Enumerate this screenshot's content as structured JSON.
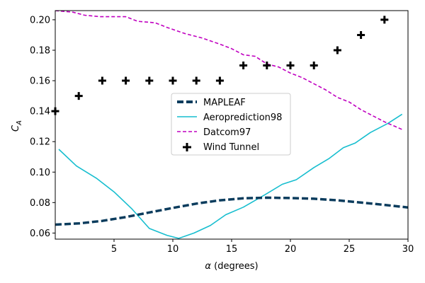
{
  "chart_data": {
    "type": "line",
    "title": "",
    "xlabel_symbol": "α",
    "xlabel_text": " (degrees)",
    "ylabel_symbol": "C",
    "ylabel_sub": "A",
    "xlim": [
      0,
      30
    ],
    "ylim": [
      0.056,
      0.206
    ],
    "xticks": [
      5,
      10,
      15,
      20,
      25,
      30
    ],
    "yticks": [
      0.06,
      0.08,
      0.1,
      0.12,
      0.14,
      0.16,
      0.18,
      0.2
    ],
    "ytick_labels": [
      "0.06",
      "0.08",
      "0.10",
      "0.12",
      "0.14",
      "0.16",
      "0.18",
      "0.20"
    ],
    "legend_position": "center",
    "colors": {
      "mapleaf": "#0b3c5d",
      "aeroprediction": "#17becf",
      "datcom": "#c000c0",
      "windtunnel": "#000000"
    },
    "series": [
      {
        "name": "MAPLEAF",
        "style": "thick-dashed",
        "x": [
          0,
          2,
          4,
          6,
          8,
          10,
          12,
          14,
          16,
          18,
          20,
          22,
          24,
          26,
          28,
          30
        ],
        "y": [
          0.0655,
          0.0663,
          0.068,
          0.0705,
          0.0735,
          0.0765,
          0.0793,
          0.0815,
          0.0828,
          0.0832,
          0.083,
          0.0825,
          0.0815,
          0.08,
          0.0785,
          0.0768
        ]
      },
      {
        "name": "Aeroprediction98",
        "style": "solid",
        "x": [
          0.3,
          1.8,
          3.5,
          5.0,
          6.5,
          8.0,
          9.5,
          10.5,
          11.8,
          13.2,
          14.5,
          16.0,
          17.8,
          19.3,
          20.5,
          22.0,
          23.3,
          24.5,
          25.5,
          26.8,
          28.3,
          29.5
        ],
        "y": [
          0.115,
          0.104,
          0.096,
          0.087,
          0.076,
          0.063,
          0.0585,
          0.0565,
          0.06,
          0.065,
          0.072,
          0.077,
          0.085,
          0.092,
          0.095,
          0.103,
          0.109,
          0.116,
          0.119,
          0.126,
          0.132,
          0.138
        ]
      },
      {
        "name": "Datcom97",
        "style": "dashed",
        "x": [
          0,
          1.5,
          2.5,
          3.8,
          5.0,
          6.0,
          7.0,
          8.5,
          9.5,
          11.0,
          12.5,
          14.0,
          15.0,
          16.0,
          17.0,
          18.0,
          19.0,
          20.0,
          21.0,
          22.0,
          23.0,
          24.0,
          25.0,
          26.0,
          27.0,
          28.0,
          29.5
        ],
        "y": [
          0.206,
          0.205,
          0.203,
          0.202,
          0.202,
          0.202,
          0.199,
          0.198,
          0.195,
          0.191,
          0.188,
          0.184,
          0.181,
          0.177,
          0.176,
          0.171,
          0.169,
          0.165,
          0.162,
          0.158,
          0.154,
          0.149,
          0.146,
          0.141,
          0.137,
          0.133,
          0.128
        ]
      },
      {
        "name": "Wind Tunnel",
        "style": "markers-plus",
        "x": [
          0,
          2,
          4,
          6,
          8,
          10,
          12,
          14,
          16,
          18,
          20,
          22,
          24,
          26,
          28
        ],
        "y": [
          0.14,
          0.15,
          0.16,
          0.16,
          0.16,
          0.16,
          0.16,
          0.16,
          0.17,
          0.17,
          0.17,
          0.17,
          0.18,
          0.19,
          0.2
        ]
      }
    ]
  }
}
